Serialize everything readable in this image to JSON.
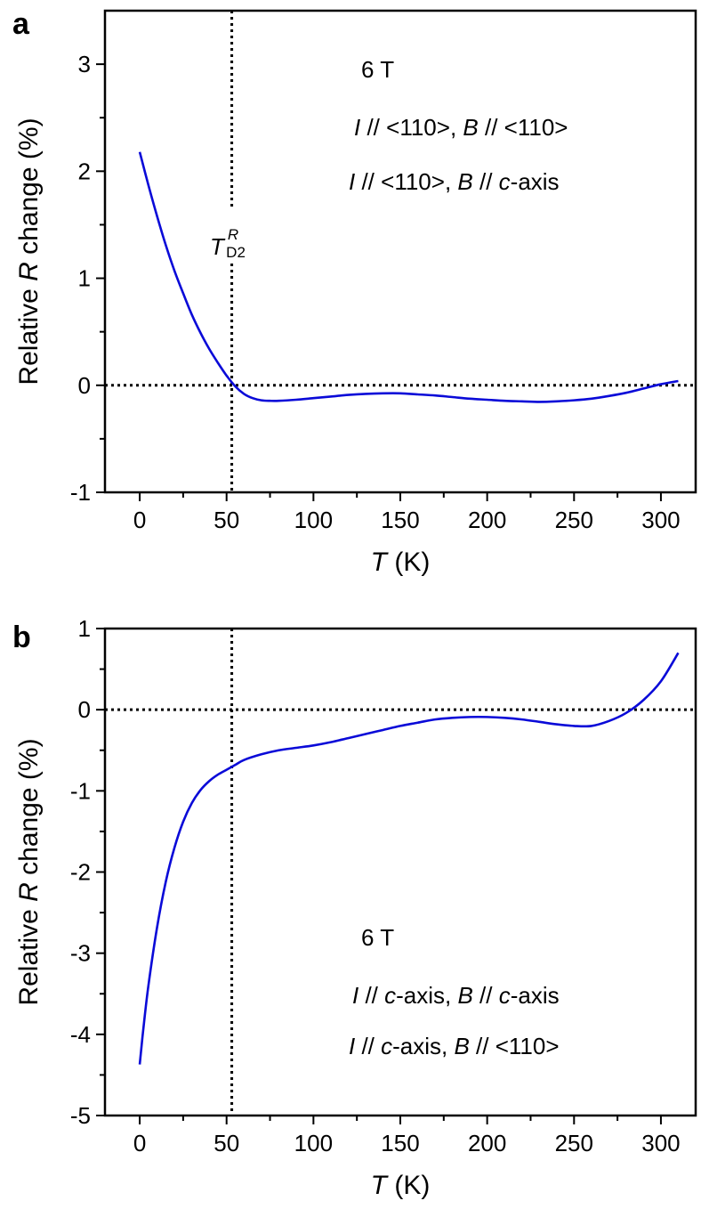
{
  "chart_data": [
    {
      "panel_label": "a",
      "type": "line",
      "xlabel": {
        "var": "T",
        "unit": " (K)"
      },
      "ylabel": {
        "pre": "Relative ",
        "var": "R",
        "post": " change (%)"
      },
      "xlim": [
        -20,
        320
      ],
      "ylim": [
        -1,
        3.5
      ],
      "xticks": [
        0,
        50,
        100,
        150,
        200,
        250,
        300
      ],
      "xtick_labels": [
        "0",
        "50",
        "100",
        "150",
        "200",
        "250",
        "300"
      ],
      "yticks": [
        -1,
        0,
        1,
        2,
        3
      ],
      "ytick_labels": [
        "-1",
        "0",
        "1",
        "2",
        "3"
      ],
      "yminor": [
        -0.5,
        0.5,
        1.5,
        2.5
      ],
      "xminor": [
        25,
        75,
        125,
        175,
        225,
        275
      ],
      "vline_x": 53,
      "hline_y": 0,
      "vline_label": {
        "main": "T",
        "sup": "R",
        "sub": "D2"
      },
      "field_label": "6 T",
      "legend": [
        [
          {
            "t": "I",
            "i": true
          },
          {
            "t": " // <110>, ",
            "i": false
          },
          {
            "t": "B",
            "i": true
          },
          {
            "t": " // <110>",
            "i": false
          }
        ],
        [
          {
            "t": "I",
            "i": true
          },
          {
            "t": " // <110>, ",
            "i": false
          },
          {
            "t": "B",
            "i": true
          },
          {
            "t": " // ",
            "i": false
          },
          {
            "t": "c",
            "i": true
          },
          {
            "t": "-axis",
            "i": false
          }
        ]
      ],
      "series": [
        {
          "name": "Relative R change",
          "color": "#0a0ad8",
          "x": [
            0,
            5,
            10,
            15,
            20,
            25,
            30,
            35,
            40,
            45,
            50,
            55,
            60,
            65,
            70,
            75,
            80,
            90,
            100,
            110,
            120,
            130,
            140,
            150,
            160,
            170,
            180,
            190,
            200,
            210,
            220,
            230,
            240,
            250,
            260,
            270,
            280,
            290,
            300,
            310
          ],
          "y": [
            2.18,
            1.87,
            1.58,
            1.31,
            1.07,
            0.86,
            0.66,
            0.49,
            0.34,
            0.21,
            0.09,
            -0.01,
            -0.08,
            -0.12,
            -0.14,
            -0.145,
            -0.145,
            -0.135,
            -0.12,
            -0.105,
            -0.09,
            -0.08,
            -0.075,
            -0.075,
            -0.085,
            -0.095,
            -0.11,
            -0.125,
            -0.135,
            -0.145,
            -0.15,
            -0.155,
            -0.15,
            -0.14,
            -0.125,
            -0.1,
            -0.07,
            -0.03,
            0.01,
            0.04
          ]
        }
      ]
    },
    {
      "panel_label": "b",
      "type": "line",
      "xlabel": {
        "var": "T",
        "unit": " (K)"
      },
      "ylabel": {
        "pre": "Relative ",
        "var": "R",
        "post": " change (%)"
      },
      "xlim": [
        -20,
        320
      ],
      "ylim": [
        -5,
        1
      ],
      "xticks": [
        0,
        50,
        100,
        150,
        200,
        250,
        300
      ],
      "xtick_labels": [
        "0",
        "50",
        "100",
        "150",
        "200",
        "250",
        "300"
      ],
      "yticks": [
        -5,
        -4,
        -3,
        -2,
        -1,
        0,
        1
      ],
      "ytick_labels": [
        "-5",
        "-4",
        "-3",
        "-2",
        "-1",
        "0",
        "1"
      ],
      "yminor": [
        -4.5,
        -3.5,
        -2.5,
        -1.5,
        -0.5,
        0.5
      ],
      "xminor": [
        25,
        75,
        125,
        175,
        225,
        275
      ],
      "vline_x": 53,
      "hline_y": 0,
      "field_label": "6 T",
      "legend": [
        [
          {
            "t": "I",
            "i": true
          },
          {
            "t": " // ",
            "i": false
          },
          {
            "t": "c",
            "i": true
          },
          {
            "t": "-axis, ",
            "i": false
          },
          {
            "t": "B",
            "i": true
          },
          {
            "t": " // ",
            "i": false
          },
          {
            "t": "c",
            "i": true
          },
          {
            "t": "-axis",
            "i": false
          }
        ],
        [
          {
            "t": "I",
            "i": true
          },
          {
            "t": " // ",
            "i": false
          },
          {
            "t": "c",
            "i": true
          },
          {
            "t": "-axis, ",
            "i": false
          },
          {
            "t": "B",
            "i": true
          },
          {
            "t": " // <110>",
            "i": false
          }
        ]
      ],
      "series": [
        {
          "name": "Relative R change",
          "color": "#0a0ad8",
          "x": [
            0,
            2,
            5,
            10,
            15,
            20,
            25,
            30,
            35,
            40,
            45,
            50,
            55,
            60,
            70,
            80,
            90,
            100,
            110,
            120,
            130,
            140,
            150,
            160,
            170,
            180,
            190,
            200,
            210,
            220,
            230,
            240,
            250,
            260,
            270,
            280,
            290,
            300,
            310
          ],
          "y": [
            -4.37,
            -3.95,
            -3.4,
            -2.68,
            -2.12,
            -1.7,
            -1.38,
            -1.15,
            -0.99,
            -0.88,
            -0.8,
            -0.74,
            -0.68,
            -0.62,
            -0.55,
            -0.5,
            -0.47,
            -0.44,
            -0.4,
            -0.35,
            -0.3,
            -0.25,
            -0.2,
            -0.16,
            -0.12,
            -0.1,
            -0.09,
            -0.09,
            -0.1,
            -0.12,
            -0.15,
            -0.18,
            -0.2,
            -0.2,
            -0.14,
            -0.04,
            0.12,
            0.35,
            0.7
          ]
        }
      ]
    }
  ]
}
